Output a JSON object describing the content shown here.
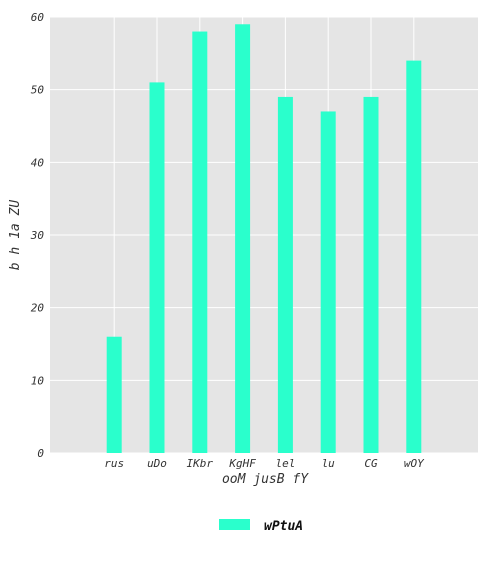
{
  "chart_data": {
    "type": "bar",
    "categories": [
      "rus",
      "uDo",
      "IKbr",
      "KgHF",
      "lel",
      "lu",
      "CG",
      "wOY"
    ],
    "series": [
      {
        "name": "wPtuA",
        "values": [
          16,
          51,
          58,
          59,
          49,
          47,
          49,
          54
        ]
      }
    ],
    "xlabel": "ooM jusB  fY",
    "ylabel": "b h 1a ZU",
    "ylim": [
      0,
      60
    ],
    "yticks": [
      0,
      10,
      20,
      30,
      40,
      50,
      60
    ],
    "grid": true,
    "legend_position": "bottom-center",
    "colors": {
      "bar": "#2affcc",
      "plot_background": "#e5e5e5",
      "grid": "#ffffff"
    }
  }
}
